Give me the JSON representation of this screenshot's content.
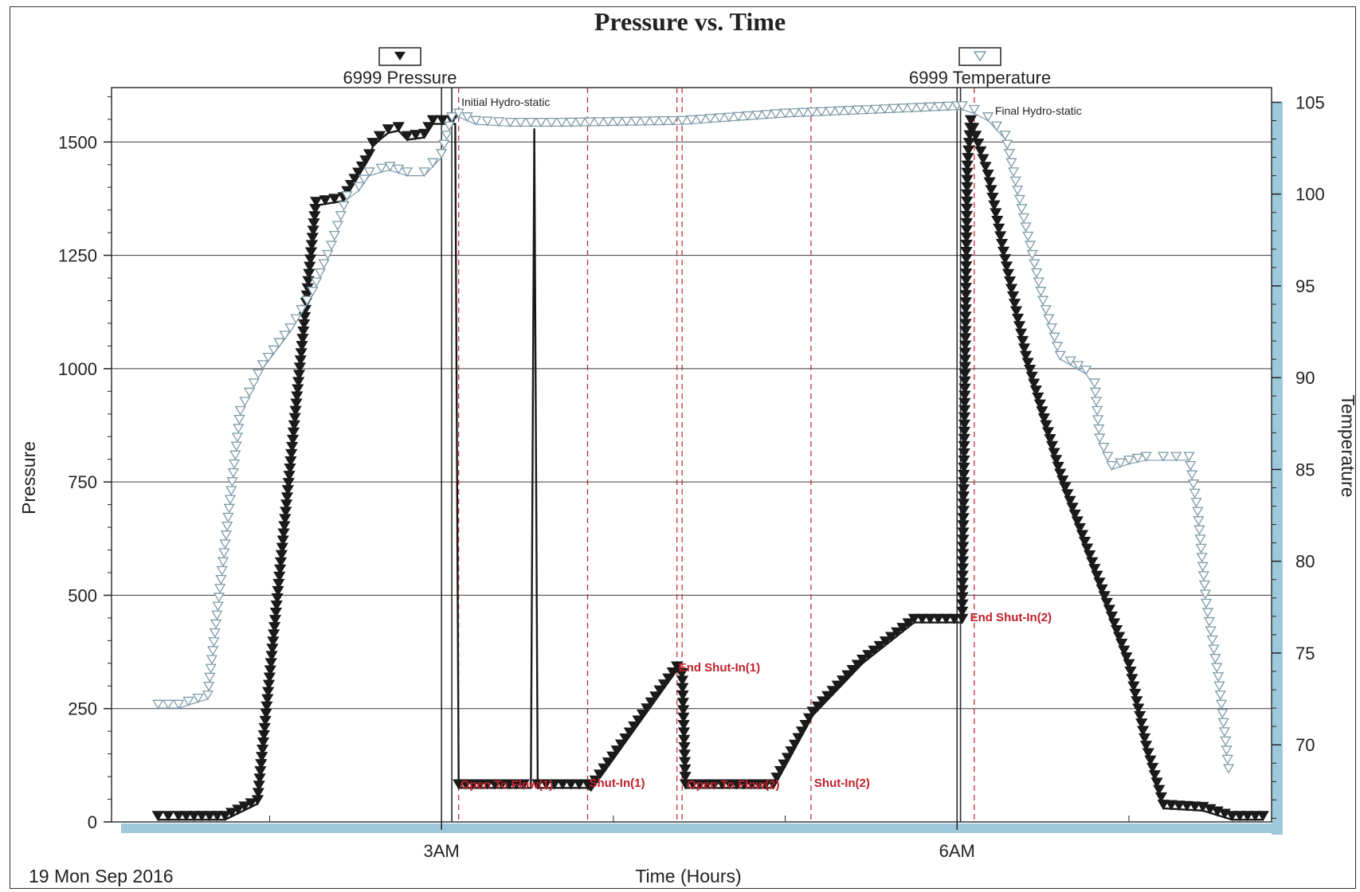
{
  "chart_data": {
    "type": "line",
    "title": "Pressure vs. Time",
    "xlabel": "Time (Hours)",
    "ylabel": "Pressure",
    "y2label": "Temperature",
    "date_label": "19 Mon Sep 2016",
    "x_unit": "hours since midnight",
    "xlim": [
      1.08,
      7.83
    ],
    "ylim": [
      0,
      1620
    ],
    "y2lim": [
      65.8,
      105.8
    ],
    "x_ticks": [
      {
        "value": 3.0,
        "label": "3AM"
      },
      {
        "value": 6.0,
        "label": "6AM"
      }
    ],
    "y_ticks": [
      0,
      250,
      500,
      750,
      1000,
      1250,
      1500
    ],
    "y2_ticks": [
      70,
      75,
      80,
      85,
      90,
      95,
      100,
      105
    ],
    "grid": true,
    "legend": [
      "6999 Pressure",
      "6999 Temperature"
    ],
    "series": [
      {
        "name": "6999 Pressure",
        "axis": "left",
        "color": "#1a1a1a",
        "marker": "filled-down-triangle",
        "x": [
          1.35,
          1.47,
          1.74,
          1.93,
          2.27,
          2.43,
          2.58,
          2.6,
          2.64,
          2.69,
          2.75,
          2.8,
          2.9,
          2.95,
          3.06,
          3.08,
          3.1,
          3.52,
          3.54,
          3.56,
          3.85,
          3.87,
          4.37,
          4.4,
          4.42,
          4.93,
          5.16,
          5.45,
          5.75,
          6.03,
          6.06,
          6.08,
          6.18,
          6.27,
          6.4,
          6.6,
          6.8,
          7.0,
          7.1,
          7.2,
          7.43,
          7.6,
          7.78
        ],
        "values": [
          5,
          5,
          5,
          40,
          1360,
          1370,
          1465,
          1490,
          1505,
          1520,
          1525,
          1505,
          1510,
          1540,
          1540,
          1540,
          75,
          75,
          1530,
          75,
          75,
          70,
          335,
          320,
          75,
          75,
          235,
          350,
          440,
          440,
          1440,
          1540,
          1420,
          1250,
          1020,
          760,
          550,
          340,
          160,
          30,
          25,
          5,
          5
        ]
      },
      {
        "name": "6999 Temperature",
        "axis": "right",
        "color": "#7e9aa8",
        "marker": "open-down-triangle",
        "x": [
          1.35,
          1.47,
          1.64,
          1.83,
          1.96,
          2.12,
          2.25,
          2.36,
          2.45,
          2.52,
          2.58,
          2.65,
          2.7,
          2.8,
          2.9,
          3.0,
          3.03,
          3.06,
          3.1,
          3.2,
          3.4,
          3.7,
          4.4,
          5.0,
          6.0,
          6.03,
          6.1,
          6.18,
          6.28,
          6.4,
          6.5,
          6.6,
          6.66,
          6.75,
          6.8,
          6.83,
          6.9,
          7.0,
          7.1,
          7.2,
          7.35,
          7.4,
          7.45,
          7.52,
          7.55,
          7.58
        ],
        "values": [
          72,
          72,
          72.5,
          88,
          90.5,
          92.5,
          94.5,
          97,
          99.7,
          100.2,
          101,
          101.2,
          101.3,
          101,
          101,
          102,
          103,
          104,
          104.2,
          103.8,
          103.7,
          103.7,
          103.8,
          104.2,
          104.6,
          104.6,
          104.4,
          104,
          103,
          98,
          94,
          91,
          90.7,
          90.2,
          89.5,
          86.5,
          85,
          85.3,
          85.5,
          85.5,
          85.5,
          82.5,
          77.5,
          73.5,
          71,
          68.5
        ]
      }
    ],
    "events": [
      {
        "label": "Initial Hydro-static",
        "x": 3.06,
        "style": "dark",
        "color": "#2b2b2b"
      },
      {
        "label": "Open To Flow(1)",
        "x": 3.1,
        "style": "red",
        "color": "#c0202a"
      },
      {
        "label": "Shut-In(1)",
        "x": 3.85,
        "style": "red",
        "color": "#c0202a"
      },
      {
        "label": "End Shut-In(1)",
        "x": 4.37,
        "style": "red",
        "color": "#c0202a"
      },
      {
        "label": "Open To Flow(2)",
        "x": 4.4,
        "style": "red",
        "color": "#c0202a"
      },
      {
        "label": "Shut-In(2)",
        "x": 5.15,
        "style": "red",
        "color": "#c0202a"
      },
      {
        "label": "End Shut-In(2)",
        "x": 6.02,
        "style": "dark",
        "color": "#2b2b2b"
      },
      {
        "label": "Final Hydro-static",
        "x": 6.1,
        "style": "red",
        "color": "#c0202a"
      }
    ]
  },
  "colors": {
    "grid": "#3a3a3a",
    "event_red": "#c0202a",
    "axis_shadow": "#9ec8dc",
    "pressure": "#1a1a1a",
    "temperature": "#7e9aa8"
  }
}
